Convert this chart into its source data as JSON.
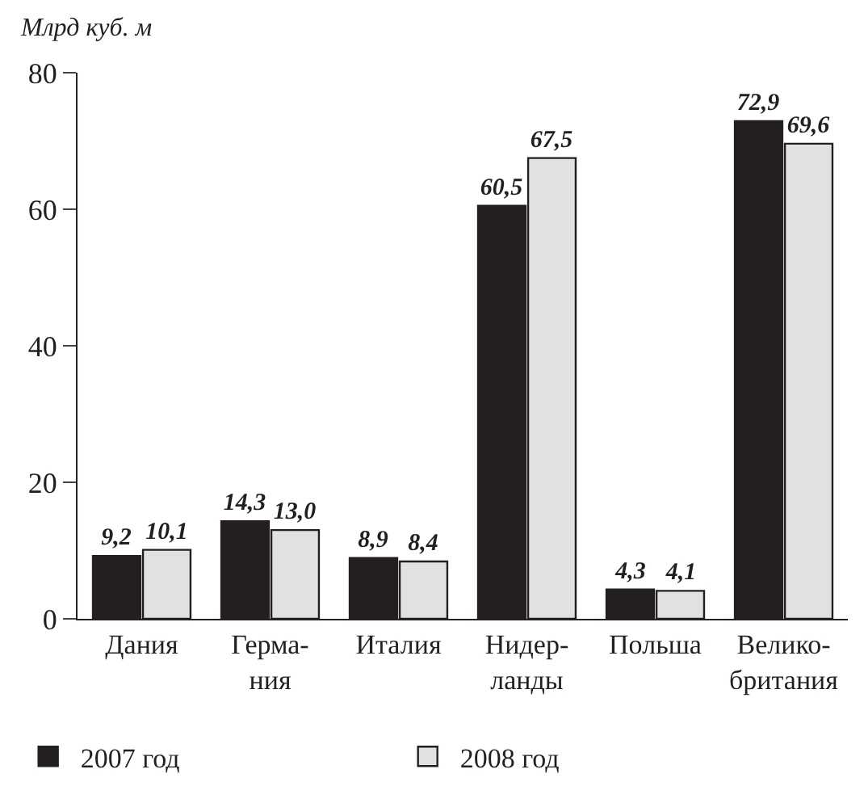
{
  "chart_data": {
    "type": "bar",
    "ylabel": "Млрд куб. м",
    "categories": [
      "Дания",
      "Герма-\nния",
      "Италия",
      "Нидер-\nланды",
      "Польша",
      "Велико-\nбритания"
    ],
    "series": [
      {
        "name": "2007 год",
        "color": "#231f20",
        "values": [
          9.2,
          14.3,
          8.9,
          60.5,
          4.3,
          72.9
        ],
        "value_labels": [
          "9,2",
          "14,3",
          "8,9",
          "60,5",
          "4,3",
          "72,9"
        ]
      },
      {
        "name": "2008 год",
        "color": "#e0e1e3",
        "values": [
          10.1,
          13.0,
          8.4,
          67.5,
          4.1,
          69.6
        ],
        "value_labels": [
          "10,1",
          "13,0",
          "8,4",
          "67,5",
          "4,1",
          "69,6"
        ]
      }
    ],
    "ylim": [
      0,
      80
    ],
    "yticks": [
      0,
      20,
      40,
      60,
      80
    ],
    "legend": "bottom"
  }
}
